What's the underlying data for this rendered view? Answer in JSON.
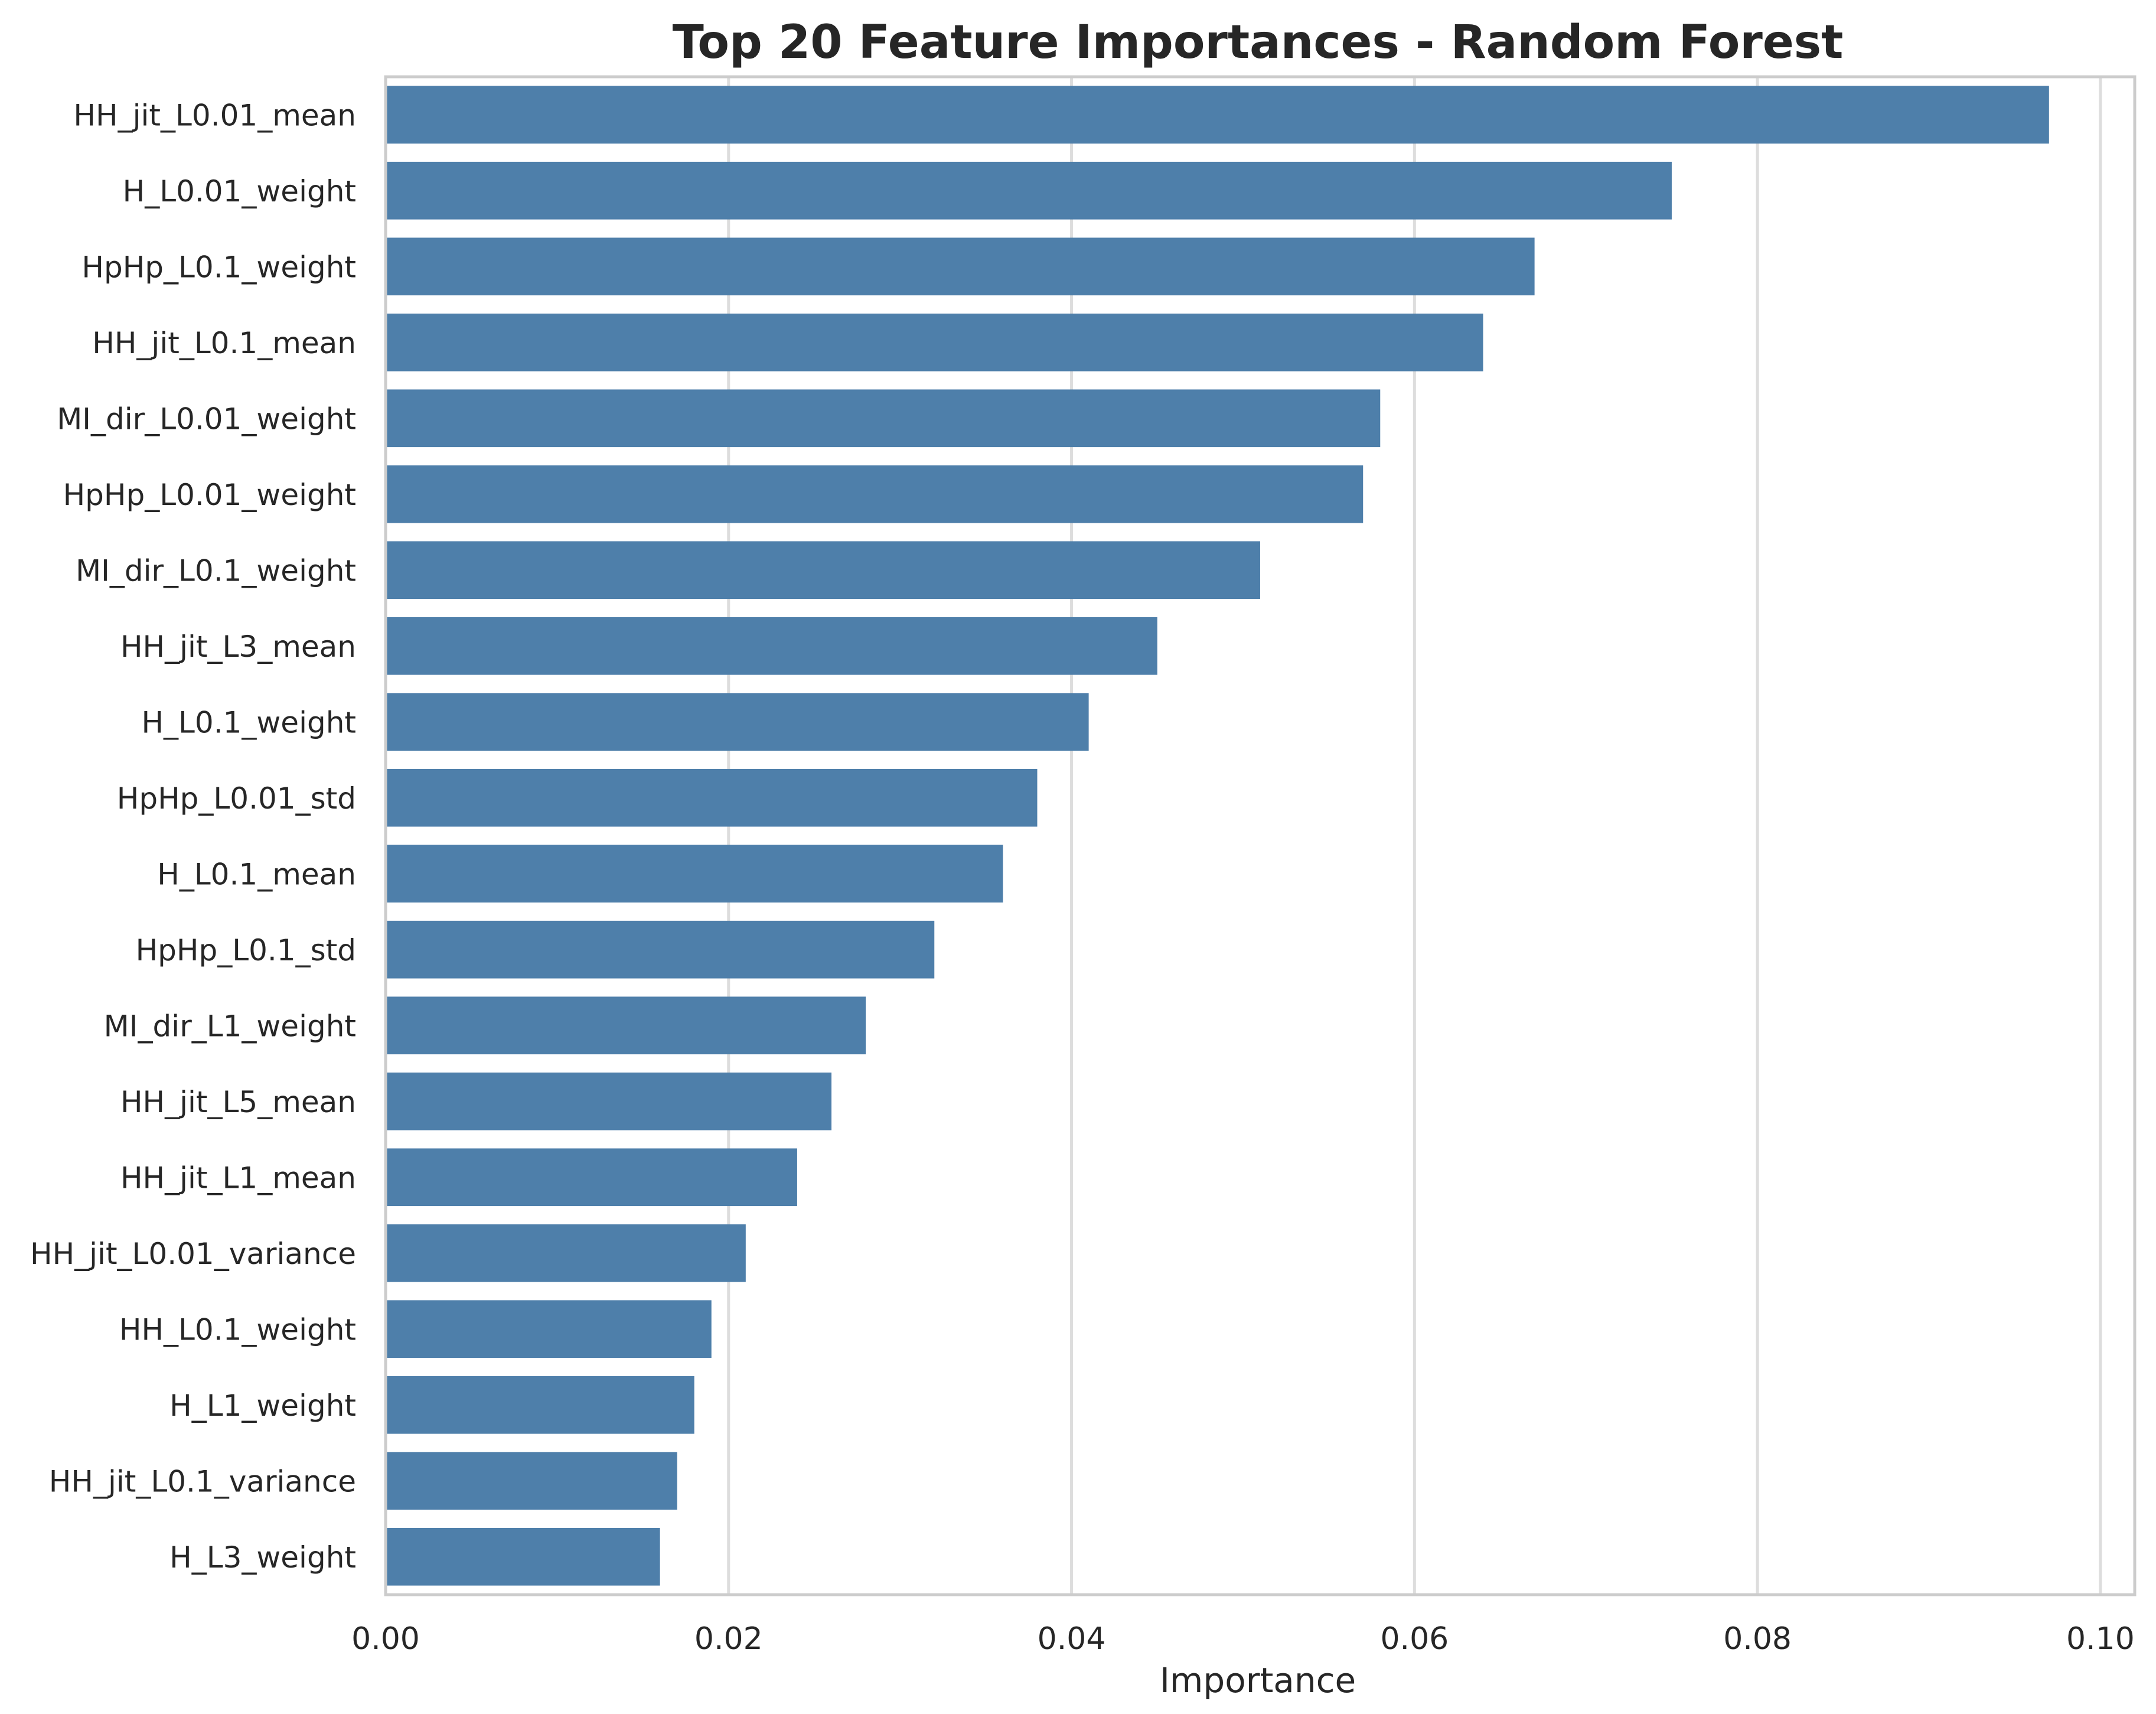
{
  "chart_data": {
    "type": "bar",
    "orientation": "horizontal",
    "title": "Top 20 Feature Importances - Random Forest",
    "xlabel": "Importance",
    "ylabel": "",
    "xlim": [
      0.0,
      0.102
    ],
    "xticks": [
      "0.00",
      "0.02",
      "0.04",
      "0.06",
      "0.08",
      "0.10"
    ],
    "grid": "vertical",
    "bar_color": "#4e7faa",
    "categories": [
      "HH_jit_L0.01_mean",
      "H_L0.01_weight",
      "HpHp_L0.1_weight",
      "HH_jit_L0.1_mean",
      "MI_dir_L0.01_weight",
      "HpHp_L0.01_weight",
      "MI_dir_L0.1_weight",
      "HH_jit_L3_mean",
      "H_L0.1_weight",
      "HpHp_L0.01_std",
      "H_L0.1_mean",
      "HpHp_L0.1_std",
      "MI_dir_L1_weight",
      "HH_jit_L5_mean",
      "HH_jit_L1_mean",
      "HH_jit_L0.01_variance",
      "HH_L0.1_weight",
      "H_L1_weight",
      "HH_jit_L0.1_variance",
      "H_L3_weight"
    ],
    "values": [
      0.097,
      0.075,
      0.067,
      0.064,
      0.058,
      0.057,
      0.051,
      0.045,
      0.041,
      0.038,
      0.036,
      0.032,
      0.028,
      0.026,
      0.024,
      0.021,
      0.019,
      0.018,
      0.017,
      0.016
    ]
  }
}
